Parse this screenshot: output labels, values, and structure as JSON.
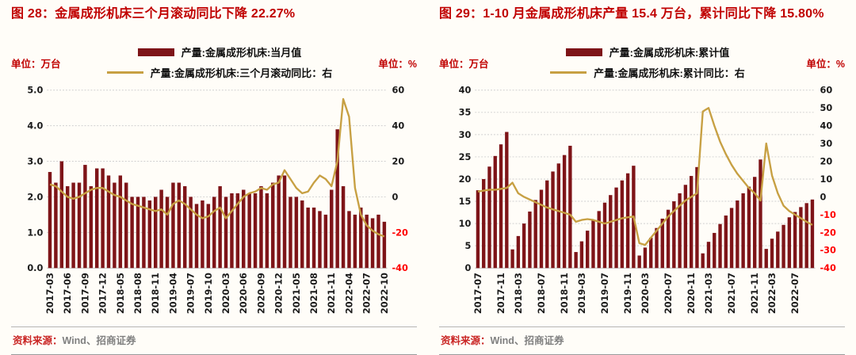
{
  "colors": {
    "bar": "#7e1418",
    "line": "#c7a043",
    "title": "#c00000",
    "negative": "#ff0000"
  },
  "source": {
    "label": "资料来源：",
    "text": "Wind、招商证券"
  },
  "chart_data": [
    {
      "type": "bar+line",
      "title": "图 28：金属成形机床三个月滚动同比下降 22.27%",
      "unit_left": "单位：万台",
      "unit_right": "单位：%",
      "legend_position": "top-center",
      "grid": true,
      "x": [
        "2017-03",
        "2017-04",
        "2017-05",
        "2017-06",
        "2017-07",
        "2017-08",
        "2017-09",
        "2017-10",
        "2017-11",
        "2017-12",
        "2018-03",
        "2018-04",
        "2018-05",
        "2018-06",
        "2018-07",
        "2018-08",
        "2018-09",
        "2018-10",
        "2018-11",
        "2018-12",
        "2019-03",
        "2019-04",
        "2019-05",
        "2019-06",
        "2019-07",
        "2019-08",
        "2019-09",
        "2019-10",
        "2019-11",
        "2019-12",
        "2020-03",
        "2020-04",
        "2020-05",
        "2020-06",
        "2020-07",
        "2020-08",
        "2020-09",
        "2020-10",
        "2020-11",
        "2020-12",
        "2021-03",
        "2021-04",
        "2021-05",
        "2021-06",
        "2021-07",
        "2021-08",
        "2021-09",
        "2021-10",
        "2021-11",
        "2021-12",
        "2022-03",
        "2022-04",
        "2022-05",
        "2022-06",
        "2022-07",
        "2022-08",
        "2022-09",
        "2022-10"
      ],
      "bar_series": {
        "name": "产量:金属成形机床:当月值",
        "axis": "left",
        "values": [
          2.7,
          2.4,
          3.0,
          2.3,
          2.4,
          2.4,
          2.9,
          2.3,
          2.8,
          2.8,
          2.6,
          2.4,
          2.6,
          2.4,
          2.0,
          2.0,
          2.0,
          1.9,
          2.0,
          2.2,
          2.0,
          2.4,
          2.4,
          2.3,
          2.0,
          1.8,
          1.9,
          1.8,
          2.0,
          2.3,
          2.0,
          2.1,
          2.1,
          2.2,
          2.1,
          2.1,
          2.3,
          2.1,
          2.4,
          2.6,
          2.6,
          2.0,
          2.0,
          1.9,
          1.7,
          1.7,
          1.6,
          1.5,
          2.2,
          3.9,
          2.3,
          1.6,
          1.5,
          1.7,
          1.5,
          1.4,
          1.5,
          1.3
        ]
      },
      "line_series": {
        "name": "产量:金属成形机床:三个月滚动同比：右",
        "axis": "right",
        "values": [
          7,
          6,
          3,
          0,
          -1,
          0,
          2,
          4,
          5,
          5,
          3,
          1,
          0,
          -2,
          -4,
          -5,
          -6,
          -7,
          -8,
          -7,
          -10,
          -4,
          -2,
          -4,
          -7,
          -10,
          -12,
          -11,
          -8,
          -6,
          -12,
          -8,
          -4,
          0,
          2,
          3,
          5,
          4,
          7,
          8,
          15,
          10,
          5,
          2,
          3,
          8,
          12,
          10,
          6,
          20,
          55,
          45,
          5,
          -10,
          -16,
          -19,
          -21,
          -22.27
        ]
      },
      "left_axis": {
        "min": 0,
        "max": 5,
        "step": 1,
        "ticks": [
          "0.0",
          "1.0",
          "2.0",
          "3.0",
          "4.0",
          "5.0"
        ]
      },
      "right_axis": {
        "min": -40,
        "max": 60,
        "step": 20,
        "ticks": [
          "-40",
          "-20",
          "0",
          "20",
          "40",
          "60"
        ]
      },
      "x_ticks": [
        "2017-03",
        "2017-06",
        "2017-09",
        "2017-12",
        "2018-05",
        "2018-08",
        "2018-11",
        "2019-04",
        "2019-07",
        "2019-10",
        "2020-03",
        "2020-06",
        "2020-09",
        "2020-12",
        "2021-05",
        "2021-08",
        "2021-11",
        "2022-04",
        "2022-07",
        "2022-10"
      ]
    },
    {
      "type": "bar+line",
      "title": "图 29：1-10 月金属成形机床产量 15.4 万台，累计同比下降 15.80%",
      "unit_left": "单位：万台",
      "unit_right": "单位：%",
      "legend_position": "top-center",
      "grid": true,
      "x": [
        "2017-07",
        "2017-08",
        "2017-09",
        "2017-10",
        "2017-11",
        "2017-12",
        "2018-02",
        "2018-03",
        "2018-04",
        "2018-05",
        "2018-06",
        "2018-07",
        "2018-08",
        "2018-09",
        "2018-10",
        "2018-11",
        "2018-12",
        "2019-02",
        "2019-03",
        "2019-04",
        "2019-05",
        "2019-06",
        "2019-07",
        "2019-08",
        "2019-09",
        "2019-10",
        "2019-11",
        "2019-12",
        "2020-02",
        "2020-03",
        "2020-04",
        "2020-05",
        "2020-06",
        "2020-07",
        "2020-08",
        "2020-09",
        "2020-10",
        "2020-11",
        "2020-12",
        "2021-02",
        "2021-03",
        "2021-04",
        "2021-05",
        "2021-06",
        "2021-07",
        "2021-08",
        "2021-09",
        "2021-10",
        "2021-11",
        "2021-12",
        "2022-02",
        "2022-03",
        "2022-04",
        "2022-05",
        "2022-06",
        "2022-07",
        "2022-08",
        "2022-09",
        "2022-10"
      ],
      "bar_series": {
        "name": "产量:金属成形机床:累计值",
        "axis": "left",
        "values": [
          17.5,
          20.0,
          22.8,
          25.2,
          27.8,
          30.6,
          4.2,
          7.2,
          10.0,
          12.7,
          15.3,
          17.6,
          19.7,
          21.7,
          23.5,
          25.4,
          27.5,
          3.6,
          6.0,
          8.4,
          10.7,
          12.8,
          14.7,
          16.4,
          18.1,
          19.7,
          21.3,
          23.0,
          2.8,
          4.6,
          6.8,
          9.0,
          11.1,
          13.1,
          15.0,
          16.8,
          18.7,
          20.7,
          22.7,
          3.3,
          5.9,
          7.9,
          9.9,
          11.8,
          13.5,
          15.2,
          16.8,
          18.3,
          20.5,
          24.4,
          4.3,
          6.6,
          8.2,
          9.7,
          11.4,
          12.6,
          13.7,
          14.6,
          15.4
        ]
      },
      "line_series": {
        "name": "产量:金属成形机床:累计同比：右",
        "axis": "right",
        "values": [
          3,
          3.5,
          4,
          4,
          4.5,
          5,
          8,
          2,
          0,
          -1.5,
          -3,
          -4.5,
          -6,
          -7,
          -8,
          -9,
          -10,
          -14,
          -13,
          -12.5,
          -13,
          -14,
          -15,
          -14,
          -13,
          -12,
          -11.5,
          -11,
          -26,
          -27,
          -23,
          -19,
          -15,
          -11,
          -8,
          -5,
          -2,
          0,
          2,
          48,
          50,
          40,
          31,
          24,
          18,
          13,
          9,
          5,
          2,
          -2,
          30,
          12,
          2,
          -5,
          -8,
          -10,
          -12,
          -14,
          -15.8
        ]
      },
      "left_axis": {
        "min": 0,
        "max": 40,
        "step": 5,
        "ticks": [
          "0",
          "5",
          "10",
          "15",
          "20",
          "25",
          "30",
          "35",
          "40"
        ]
      },
      "right_axis": {
        "min": -40,
        "max": 60,
        "step": 10,
        "ticks": [
          "-40",
          "-30",
          "-20",
          "-10",
          "0",
          "10",
          "20",
          "30",
          "40",
          "50",
          "60"
        ]
      },
      "x_ticks": [
        "2017-07",
        "2017-11",
        "2018-03",
        "2018-07",
        "2018-11",
        "2019-03",
        "2019-07",
        "2019-11",
        "2020-03",
        "2020-07",
        "2020-11",
        "2021-03",
        "2021-07",
        "2021-11",
        "2022-03",
        "2022-07"
      ]
    }
  ]
}
